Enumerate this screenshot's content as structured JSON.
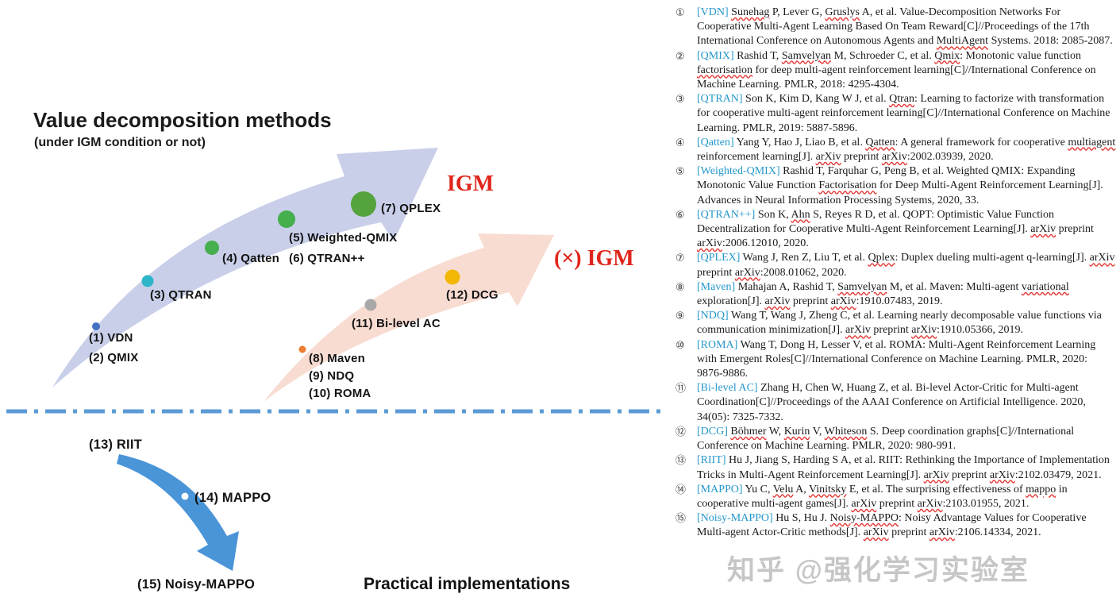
{
  "diagram": {
    "title": "Value decomposition methods",
    "subtitle": "(under IGM condition or not)",
    "igm_label": "IGM",
    "not_igm_label": "(×) IGM",
    "practical_label": "Practical implementations",
    "labels": {
      "m1": "(1) VDN",
      "m2": "(2) QMIX",
      "m3": "(3) QTRAN",
      "m4": "(4) Qatten",
      "m5": "(5) Weighted-QMIX",
      "m6": "(6) QTRAN++",
      "m7": "(7) QPLEX",
      "m8": "(8) Maven",
      "m9": "(9) NDQ",
      "m10": "(10) ROMA",
      "m11": "(11) Bi-level AC",
      "m12": "(12) DCG",
      "m13": "(13) RIIT",
      "m14": "(14) MAPPO",
      "m15": "(15) Noisy-MAPPO"
    },
    "colors": {
      "igm_arrow": "#c9cfe9",
      "not_igm_arrow": "#f8dcd2",
      "practical_arrow": "#4a94d8",
      "divider": "#5b9bd5",
      "igm_text": "#e0261c",
      "dot_vdn_qmix": "#4472c4",
      "dot_qtran": "#2eb5c9",
      "dot_qatten": "#45ae4d",
      "dot_weighted_qmix": "#45ae4d",
      "dot_qplex": "#55a33c",
      "dot_maven": "#ed7d31",
      "dot_bilevel_ac": "#a8a8a8",
      "dot_dcg": "#f2b705",
      "dot_mappo_marker": "#ffffff"
    }
  },
  "watermark": "知乎 @强化学习实验室",
  "references": {
    "tag_color": "#2598cb",
    "underline_words": [
      "Sunehag",
      "Gruslys",
      "MultiAgent",
      "Samvelyan",
      "factorisation",
      "Factorisation",
      "Qmix",
      "Qtran",
      "Qatten",
      "multiagent",
      "arXiv",
      "Ahn",
      "Qplex",
      "variational",
      "Böhmer",
      "Kurin",
      "Whiteson",
      "Velu",
      "Vinitsky",
      "mappo",
      "Noisy-MAPPO"
    ],
    "items": [
      {
        "num": "①",
        "tag": "[VDN]",
        "text": "Sunehag P, Lever G, Gruslys A, et al. Value-Decomposition Networks For Cooperative Multi-Agent Learning Based On Team Reward[C]//Proceedings of the 17th International Conference on Autonomous Agents and MultiAgent Systems. 2018: 2085-2087."
      },
      {
        "num": "②",
        "tag": "[QMIX]",
        "text": "Rashid T, Samvelyan M, Schroeder C, et al. Qmix: Monotonic value function factorisation for deep multi-agent reinforcement learning[C]//International Conference on Machine Learning. PMLR, 2018: 4295-4304."
      },
      {
        "num": "③",
        "tag": "[QTRAN]",
        "text": "Son K, Kim D, Kang W J, et al. Qtran: Learning to factorize with transformation for cooperative multi-agent reinforcement learning[C]//International Conference on Machine Learning. PMLR, 2019: 5887-5896."
      },
      {
        "num": "④",
        "tag": "[Qatten]",
        "text": "Yang Y, Hao J, Liao B, et al. Qatten: A general framework for cooperative multiagent reinforcement learning[J]. arXiv preprint arXiv:2002.03939, 2020."
      },
      {
        "num": "⑤",
        "tag": "[Weighted-QMIX]",
        "text": "Rashid T, Farquhar G, Peng B, et al. Weighted QMIX: Expanding Monotonic Value Function Factorisation for Deep Multi-Agent Reinforcement Learning[J]. Advances in Neural Information Processing Systems, 2020, 33."
      },
      {
        "num": "⑥",
        "tag": "[QTRAN++]",
        "text": "Son K, Ahn S, Reyes R D, et al. QOPT: Optimistic Value Function Decentralization for Cooperative Multi-Agent Reinforcement Learning[J]. arXiv preprint arXiv:2006.12010, 2020."
      },
      {
        "num": "⑦",
        "tag": "[QPLEX]",
        "text": "Wang J, Ren Z, Liu T, et al. Qplex: Duplex dueling multi-agent q-learning[J]. arXiv preprint arXiv:2008.01062, 2020."
      },
      {
        "num": "⑧",
        "tag": "[Maven]",
        "text": "Mahajan A, Rashid T, Samvelyan M, et al. Maven: Multi-agent variational exploration[J]. arXiv preprint arXiv:1910.07483, 2019."
      },
      {
        "num": "⑨",
        "tag": "[NDQ]",
        "text": "Wang T, Wang J, Zheng C, et al. Learning nearly decomposable value functions via communication minimization[J]. arXiv preprint arXiv:1910.05366, 2019."
      },
      {
        "num": "⑩",
        "tag": "[ROMA]",
        "text": "Wang T, Dong H, Lesser V, et al. ROMA: Multi-Agent Reinforcement Learning with Emergent Roles[C]//International Conference on Machine Learning. PMLR, 2020: 9876-9886."
      },
      {
        "num": "⑪",
        "tag": "[Bi-level AC]",
        "text": "Zhang H, Chen W, Huang Z, et al. Bi-level Actor-Critic for Multi-agent Coordination[C]//Proceedings of the AAAI Conference on Artificial Intelligence. 2020, 34(05): 7325-7332."
      },
      {
        "num": "⑫",
        "tag": "[DCG]",
        "text": "Böhmer W, Kurin V, Whiteson S. Deep coordination graphs[C]//International Conference on Machine Learning. PMLR, 2020: 980-991."
      },
      {
        "num": "⑬",
        "tag": "[RIIT]",
        "text": "Hu J, Jiang S, Harding S A, et al. RIIT: Rethinking the Importance of Implementation Tricks in Multi-Agent Reinforcement Learning[J]. arXiv preprint arXiv:2102.03479, 2021."
      },
      {
        "num": "⑭",
        "tag": "[MAPPO]",
        "text": "Yu C, Velu A, Vinitsky E, et al. The surprising effectiveness of mappo in cooperative multi-agent games[J]. arXiv preprint arXiv:2103.01955, 2021."
      },
      {
        "num": "⑮",
        "tag": "[Noisy-MAPPO]",
        "text": "Hu S, Hu J. Noisy-MAPPO: Noisy Advantage Values for Cooperative Multi-agent Actor-Critic methods[J]. arXiv preprint arXiv:2106.14334, 2021."
      }
    ]
  }
}
